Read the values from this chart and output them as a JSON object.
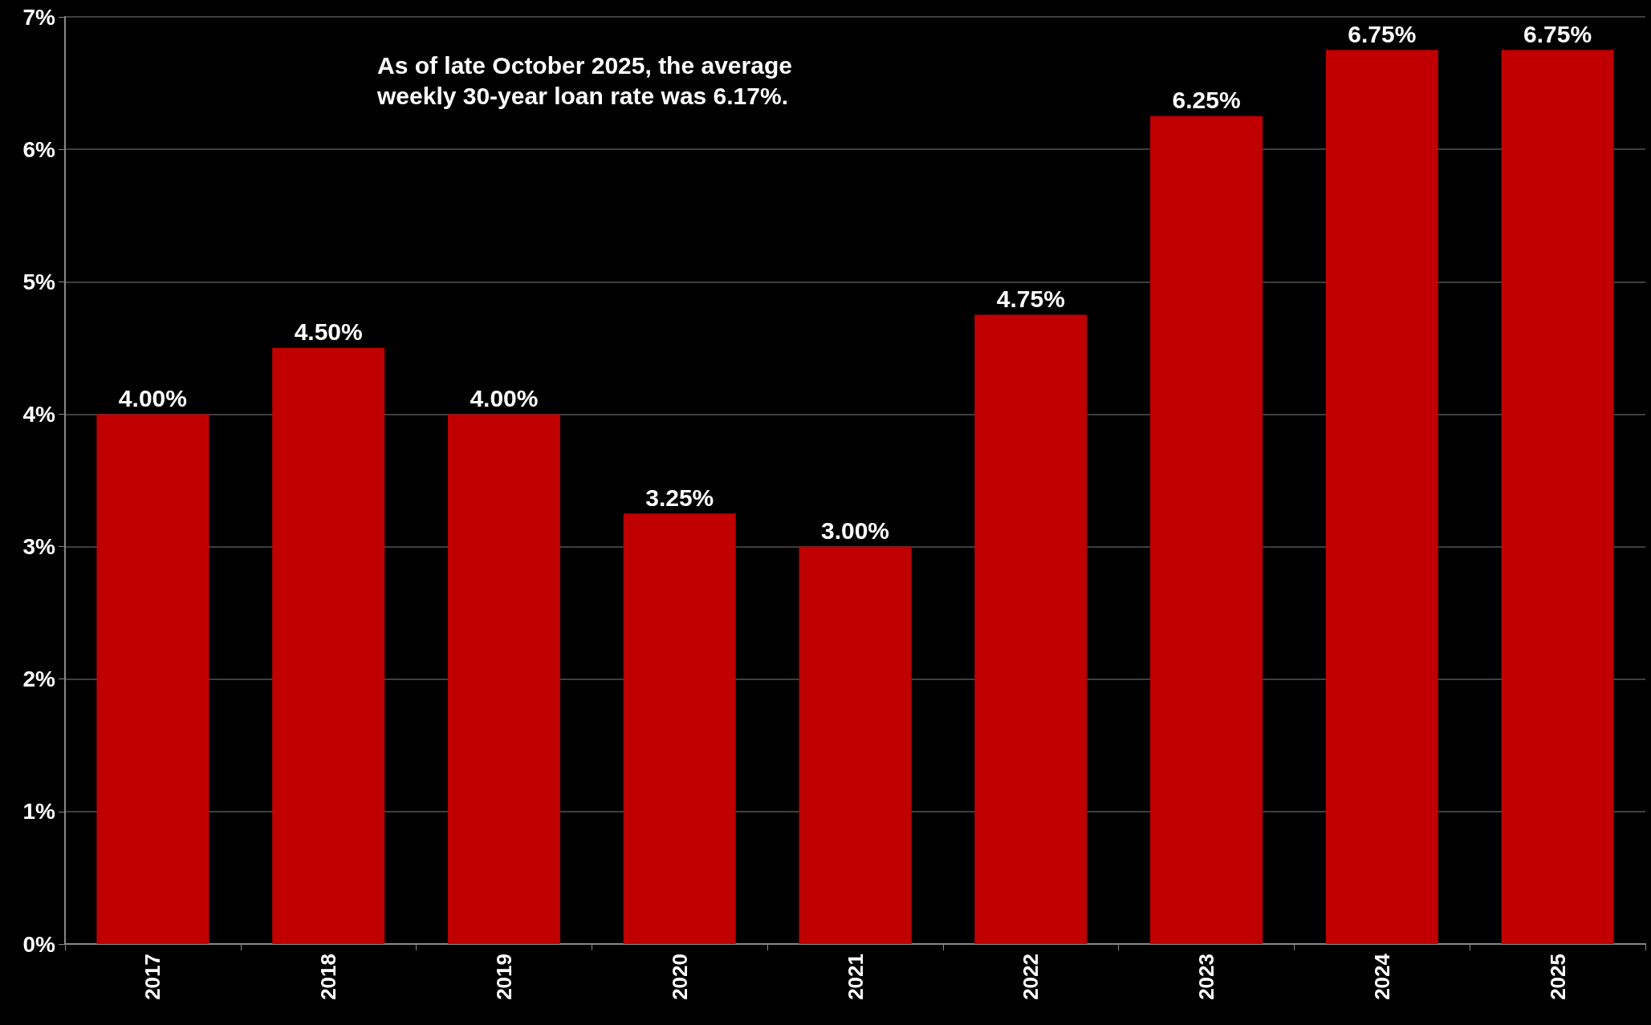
{
  "chart_data": {
    "type": "bar",
    "categories": [
      "2017",
      "2018",
      "2019",
      "2020",
      "2021",
      "2022",
      "2023",
      "2024",
      "2025"
    ],
    "values": [
      4,
      4.5,
      4,
      3.25,
      3,
      4.75,
      6.25,
      6.75,
      6.75
    ],
    "value_labels": [
      "4.00%",
      "4.50%",
      "4.00%",
      "3.25%",
      "3.00%",
      "4.75%",
      "6.25%",
      "6.75%",
      "6.75%"
    ],
    "color": "#c00000",
    "ylim": [
      0,
      7
    ],
    "yticks": [
      {
        "value": 0,
        "label": "0%"
      },
      {
        "value": 1,
        "label": "1%"
      },
      {
        "value": 2,
        "label": "2%"
      },
      {
        "value": 3,
        "label": "3%"
      },
      {
        "value": 4,
        "label": "4%"
      },
      {
        "value": 5,
        "label": "5%"
      },
      {
        "value": 6,
        "label": "6%"
      },
      {
        "value": 7,
        "label": "7%"
      }
    ],
    "grid": "y",
    "annotations": [
      "As of late October 2025, the average weekly 30-year loan rate was 6.17%."
    ]
  }
}
